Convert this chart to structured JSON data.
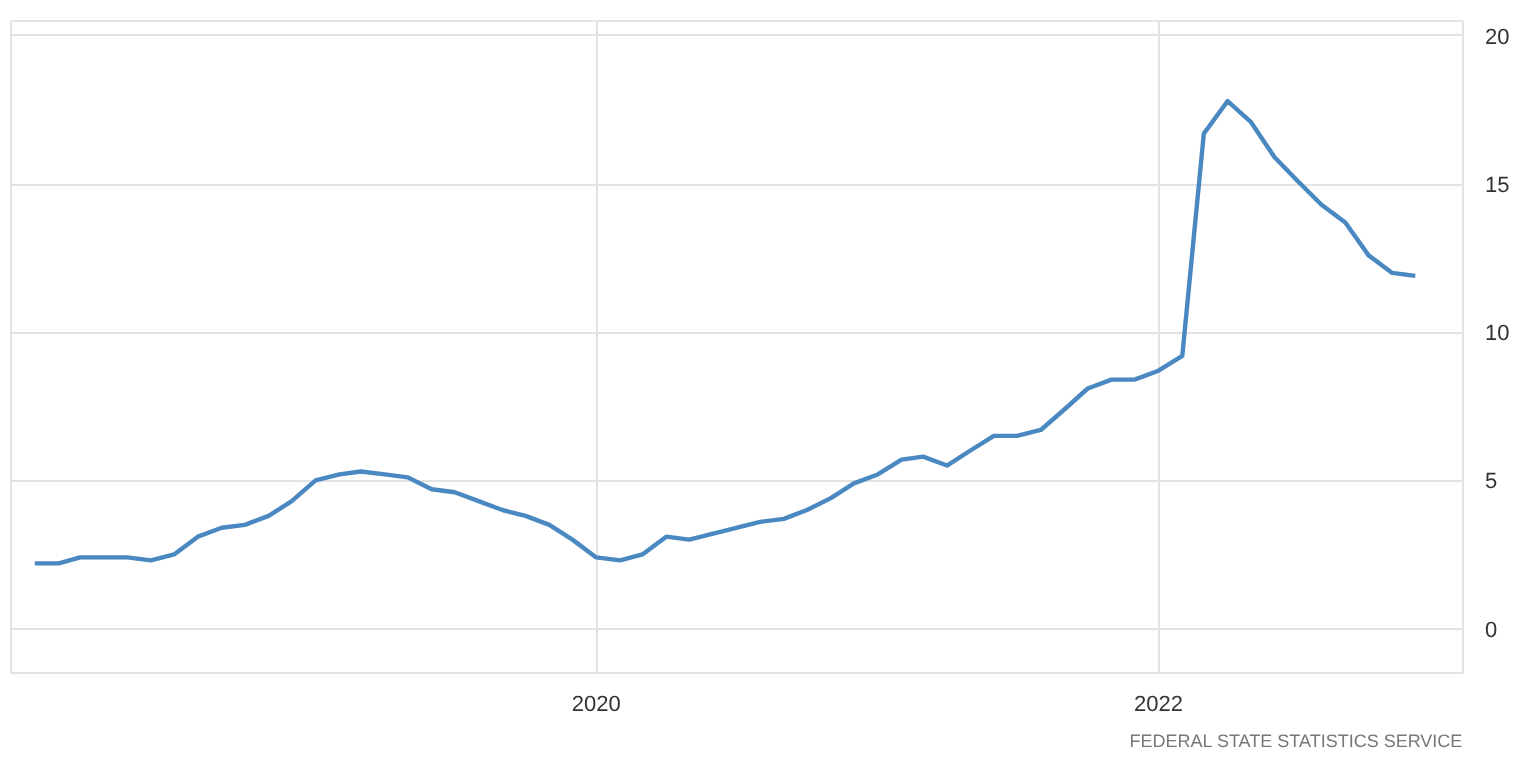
{
  "chart_data": {
    "type": "line",
    "x": [
      "2018-01",
      "2018-02",
      "2018-03",
      "2018-04",
      "2018-05",
      "2018-06",
      "2018-07",
      "2018-08",
      "2018-09",
      "2018-10",
      "2018-11",
      "2018-12",
      "2019-01",
      "2019-02",
      "2019-03",
      "2019-04",
      "2019-05",
      "2019-06",
      "2019-07",
      "2019-08",
      "2019-09",
      "2019-10",
      "2019-11",
      "2019-12",
      "2020-01",
      "2020-02",
      "2020-03",
      "2020-04",
      "2020-05",
      "2020-06",
      "2020-07",
      "2020-08",
      "2020-09",
      "2020-10",
      "2020-11",
      "2020-12",
      "2021-01",
      "2021-02",
      "2021-03",
      "2021-04",
      "2021-05",
      "2021-06",
      "2021-07",
      "2021-08",
      "2021-09",
      "2021-10",
      "2021-11",
      "2021-12",
      "2022-01",
      "2022-02",
      "2022-03",
      "2022-04",
      "2022-05",
      "2022-06",
      "2022-07",
      "2022-08",
      "2022-09",
      "2022-10",
      "2022-11",
      "2022-12"
    ],
    "series": [
      {
        "color": "#4a88c2",
        "values": [
          2.2,
          2.2,
          2.4,
          2.4,
          2.4,
          2.3,
          2.5,
          3.1,
          3.4,
          3.5,
          3.8,
          4.3,
          5.0,
          5.2,
          5.3,
          5.2,
          5.1,
          4.7,
          4.6,
          4.3,
          4.0,
          3.8,
          3.5,
          3.0,
          2.4,
          2.3,
          2.5,
          3.1,
          3.0,
          3.2,
          3.4,
          3.6,
          3.7,
          4.0,
          4.4,
          4.9,
          5.2,
          5.7,
          5.8,
          5.5,
          6.0,
          6.5,
          6.5,
          6.7,
          7.4,
          8.1,
          8.4,
          8.4,
          8.7,
          9.2,
          16.7,
          17.8,
          17.1,
          15.9,
          15.1,
          14.3,
          13.7,
          12.6,
          12.0,
          11.9
        ]
      }
    ],
    "xlim": [
      "2017-12",
      "2023-02"
    ],
    "xticks": [
      "2020",
      "2022"
    ],
    "ylim": [
      -1.5,
      20.5
    ],
    "yticks": [
      0,
      5,
      10,
      15,
      20
    ],
    "grid": true,
    "marker": "none",
    "line_style": "solid",
    "annotations": [
      "FEDERAL STATE STATISTICS SERVICE"
    ]
  }
}
